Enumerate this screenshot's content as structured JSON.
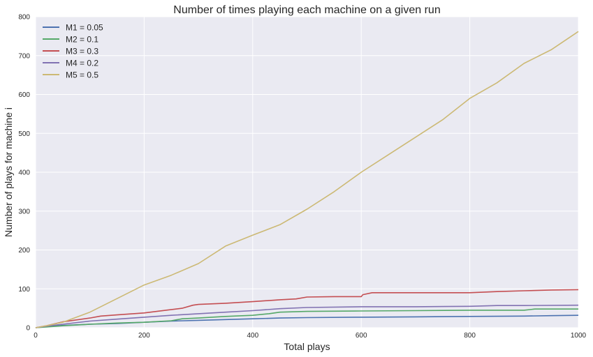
{
  "chart_data": {
    "type": "line",
    "title": "Number of times playing each machine on a given run",
    "xlabel": "Total plays",
    "ylabel": "Number of plays for machine i",
    "xlim": [
      0,
      1000
    ],
    "ylim": [
      0,
      800
    ],
    "xticks": [
      0,
      200,
      400,
      600,
      800,
      1000
    ],
    "yticks": [
      0,
      100,
      200,
      300,
      400,
      500,
      600,
      700,
      800
    ],
    "grid": true,
    "legend_position": "upper-left",
    "style": {
      "plot_bg": "#eaeaf2",
      "grid_color": "#ffffff"
    },
    "series": [
      {
        "name": "M1 = 0.05",
        "color": "#4c72b0",
        "x": [
          0,
          20,
          50,
          100,
          150,
          200,
          250,
          300,
          350,
          400,
          450,
          500,
          600,
          700,
          800,
          900,
          950,
          1000
        ],
        "y": [
          0,
          3,
          6,
          9,
          11,
          14,
          17,
          19,
          21,
          23,
          25,
          26,
          27,
          28,
          29,
          30,
          31,
          32
        ]
      },
      {
        "name": "M2 = 0.1",
        "color": "#55a868",
        "x": [
          0,
          20,
          50,
          100,
          150,
          200,
          250,
          270,
          300,
          350,
          400,
          430,
          450,
          500,
          600,
          700,
          800,
          900,
          920,
          1000
        ],
        "y": [
          0,
          2,
          5,
          9,
          12,
          14,
          18,
          23,
          25,
          29,
          32,
          36,
          40,
          42,
          43,
          44,
          45,
          45,
          48,
          48
        ]
      },
      {
        "name": "M3 = 0.3",
        "color": "#c44e52",
        "x": [
          0,
          20,
          50,
          100,
          120,
          150,
          200,
          240,
          270,
          290,
          300,
          350,
          400,
          450,
          480,
          500,
          550,
          600,
          603,
          620,
          700,
          800,
          850,
          900,
          950,
          1000
        ],
        "y": [
          0,
          5,
          15,
          25,
          30,
          33,
          38,
          45,
          50,
          58,
          60,
          63,
          67,
          72,
          74,
          79,
          80,
          80,
          85,
          90,
          90,
          90,
          93,
          95,
          97,
          98
        ]
      },
      {
        "name": "M4 = 0.2",
        "color": "#8172b2",
        "x": [
          0,
          20,
          50,
          100,
          150,
          200,
          250,
          300,
          350,
          400,
          450,
          500,
          600,
          700,
          800,
          850,
          900,
          1000
        ],
        "y": [
          0,
          4,
          9,
          17,
          22,
          27,
          32,
          36,
          40,
          44,
          49,
          52,
          54,
          54,
          55,
          57,
          57,
          58
        ]
      },
      {
        "name": "M5 = 0.5",
        "color": "#ccb974",
        "x": [
          0,
          20,
          50,
          100,
          150,
          200,
          250,
          300,
          350,
          400,
          450,
          500,
          550,
          600,
          650,
          700,
          750,
          800,
          850,
          900,
          950,
          1000
        ],
        "y": [
          0,
          5,
          14,
          40,
          75,
          110,
          135,
          165,
          210,
          238,
          265,
          305,
          350,
          400,
          445,
          490,
          535,
          590,
          630,
          680,
          715,
          762
        ]
      }
    ]
  }
}
